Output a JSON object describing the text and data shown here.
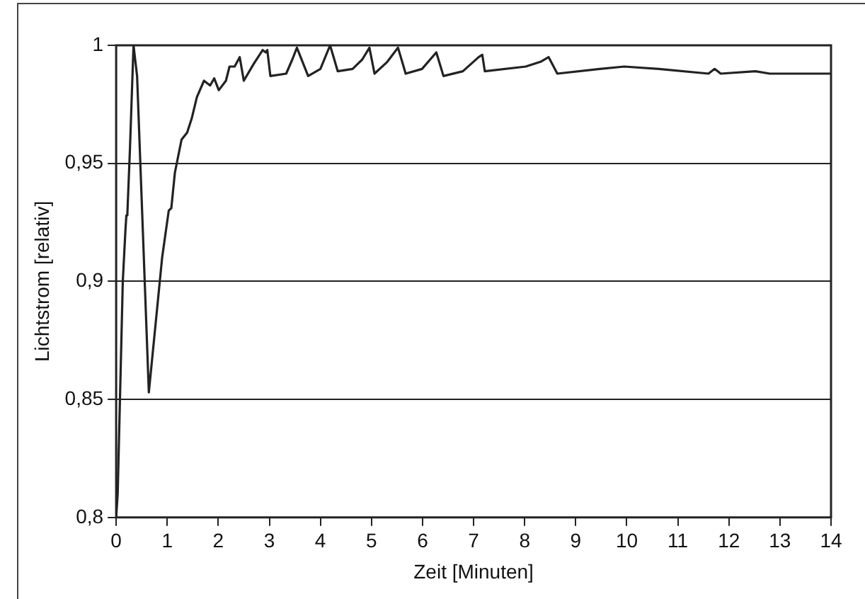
{
  "chart_data": {
    "type": "line",
    "xlabel": "Zeit [Minuten]",
    "ylabel": "Lichtstrom [relativ]",
    "xlim": [
      0,
      14
    ],
    "xticks": [
      0,
      1,
      2,
      3,
      4,
      5,
      6,
      7,
      8,
      9,
      10,
      11,
      12,
      13,
      14
    ],
    "ylim": [
      0.8,
      1
    ],
    "yticks": [
      {
        "value": 0.8,
        "label": "0,8"
      },
      {
        "value": 0.85,
        "label": "0,85"
      },
      {
        "value": 0.9,
        "label": "0,9"
      },
      {
        "value": 0.95,
        "label": "0,95"
      },
      {
        "value": 1,
        "label": "1"
      }
    ],
    "grid": "y",
    "marker": "none",
    "line_style": "solid",
    "series": [
      {
        "color": "#222222",
        "x": [
          0,
          0.03,
          0.13,
          0.18,
          0.2,
          0.22,
          0.27,
          0.34,
          0.41,
          0.64,
          0.8,
          0.9,
          1.03,
          1.08,
          1.15,
          1.28,
          1.39,
          1.48,
          1.58,
          1.72,
          1.84,
          1.92,
          2.01,
          2.15,
          2.22,
          2.32,
          2.42,
          2.5,
          2.69,
          2.87,
          2.93,
          2.96,
          3.02,
          3.33,
          3.45,
          3.54,
          3.76,
          4.0,
          4.19,
          4.34,
          4.63,
          4.82,
          4.96,
          5.06,
          5.31,
          5.52,
          5.67,
          5.99,
          6.27,
          6.41,
          6.79,
          7.1,
          7.17,
          7.22,
          8.02,
          8.31,
          8.47,
          8.64,
          9.47,
          9.95,
          10.63,
          11.6,
          11.72,
          11.84,
          12.52,
          12.8,
          14
        ],
        "values": [
          0.8,
          0.81,
          0.9,
          0.921,
          0.928,
          0.929,
          0.956,
          1.0,
          0.987,
          0.853,
          0.888,
          0.91,
          0.93,
          0.931,
          0.946,
          0.96,
          0.963,
          0.969,
          0.978,
          0.985,
          0.983,
          0.986,
          0.981,
          0.985,
          0.991,
          0.991,
          0.995,
          0.985,
          0.992,
          0.998,
          0.997,
          0.998,
          0.987,
          0.988,
          0.994,
          0.999,
          0.987,
          0.99,
          1.0,
          0.989,
          0.99,
          0.994,
          0.999,
          0.988,
          0.993,
          0.999,
          0.988,
          0.99,
          0.997,
          0.987,
          0.989,
          0.995,
          0.996,
          0.989,
          0.991,
          0.993,
          0.995,
          0.988,
          0.99,
          0.991,
          0.99,
          0.988,
          0.99,
          0.988,
          0.989,
          0.988,
          0.988
        ]
      }
    ]
  }
}
